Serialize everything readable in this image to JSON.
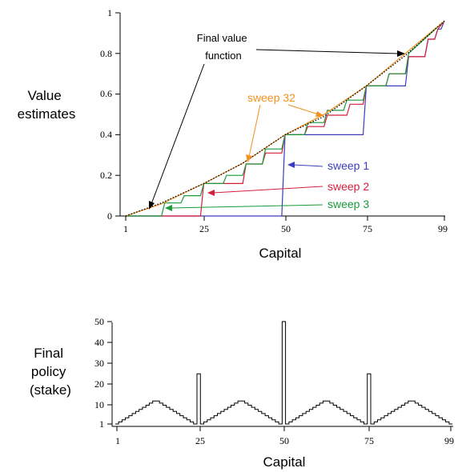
{
  "chart_data": [
    {
      "type": "line",
      "ylabel": [
        "Value",
        "estimates"
      ],
      "xlabel": "Capital",
      "xlim": [
        1,
        99
      ],
      "ylim": [
        0,
        1
      ],
      "xticks": [
        "1",
        "25",
        "50",
        "75",
        "99"
      ],
      "yticks": [
        "0",
        "0.2",
        "0.4",
        "0.6",
        "0.8",
        "1"
      ],
      "annotations": {
        "final": [
          "Final value",
          "function"
        ],
        "sweep32": "sweep 32",
        "sweep1": "sweep 1",
        "sweep2": "sweep 2",
        "sweep3": "sweep 3"
      },
      "series": [
        {
          "name": "sweep 1",
          "color": "#3a3dbb",
          "x": [
            1,
            49,
            50,
            74,
            75,
            87,
            88,
            93,
            94,
            96,
            97,
            98,
            99
          ],
          "y": [
            0,
            0,
            0.4,
            0.4,
            0.64,
            0.64,
            0.784,
            0.784,
            0.87,
            0.87,
            0.92,
            0.92,
            0.96
          ]
        },
        {
          "name": "sweep 2",
          "color": "#d41f3c",
          "x": [
            1,
            24,
            25,
            37,
            38,
            43,
            44,
            49,
            50,
            56,
            57,
            62,
            63,
            69,
            70,
            74,
            75,
            81,
            82,
            87,
            88,
            93,
            94,
            96,
            97,
            99
          ],
          "y": [
            0,
            0,
            0.16,
            0.16,
            0.256,
            0.256,
            0.31,
            0.31,
            0.4,
            0.4,
            0.44,
            0.44,
            0.496,
            0.496,
            0.55,
            0.55,
            0.64,
            0.64,
            0.7,
            0.7,
            0.784,
            0.784,
            0.87,
            0.87,
            0.92,
            0.96
          ]
        },
        {
          "name": "sweep 3",
          "color": "#1a9a38",
          "x": [
            1,
            12,
            13,
            18,
            19,
            24,
            25,
            31,
            32,
            37,
            38,
            43,
            44,
            49,
            50,
            56,
            57,
            62,
            63,
            68,
            69,
            74,
            75,
            81,
            82,
            87,
            88,
            99
          ],
          "y": [
            0,
            0,
            0.064,
            0.064,
            0.1,
            0.1,
            0.16,
            0.16,
            0.2,
            0.2,
            0.256,
            0.256,
            0.33,
            0.33,
            0.4,
            0.4,
            0.46,
            0.46,
            0.52,
            0.52,
            0.57,
            0.57,
            0.64,
            0.64,
            0.7,
            0.7,
            0.8,
            0.96
          ]
        },
        {
          "name": "sweep 32",
          "color": "#f2911e",
          "x": [
            1,
            12,
            25,
            37,
            50,
            62,
            75,
            87,
            99
          ],
          "y": [
            0,
            0.06,
            0.16,
            0.26,
            0.4,
            0.5,
            0.64,
            0.8,
            0.96
          ]
        },
        {
          "name": "Final value function",
          "color": "#000000",
          "x": [
            1,
            12,
            25,
            37,
            50,
            62,
            75,
            87,
            99
          ],
          "y": [
            0,
            0.064,
            0.16,
            0.26,
            0.4,
            0.49,
            0.64,
            0.79,
            0.96
          ]
        }
      ]
    },
    {
      "type": "step",
      "ylabel": [
        "Final",
        "policy",
        "(stake)"
      ],
      "xlabel": "Capital",
      "xlim": [
        1,
        99
      ],
      "ylim": [
        1,
        50
      ],
      "xticks": [
        "1",
        "25",
        "50",
        "75",
        "99"
      ],
      "yticks": [
        "1",
        "10",
        "20",
        "30",
        "40",
        "50"
      ],
      "series": [
        {
          "name": "policy",
          "color": "#000000",
          "x": [
            1,
            2,
            3,
            4,
            5,
            6,
            7,
            8,
            9,
            10,
            11,
            12,
            13,
            14,
            15,
            16,
            17,
            18,
            19,
            20,
            21,
            22,
            23,
            24,
            25,
            26,
            27,
            28,
            29,
            30,
            31,
            32,
            33,
            34,
            35,
            36,
            37,
            38,
            39,
            40,
            41,
            42,
            43,
            44,
            45,
            46,
            47,
            48,
            49,
            50,
            51,
            52,
            53,
            54,
            55,
            56,
            57,
            58,
            59,
            60,
            61,
            62,
            63,
            64,
            65,
            66,
            67,
            68,
            69,
            70,
            71,
            72,
            73,
            74,
            75,
            76,
            77,
            78,
            79,
            80,
            81,
            82,
            83,
            84,
            85,
            86,
            87,
            88,
            89,
            90,
            91,
            92,
            93,
            94,
            95,
            96,
            97,
            98,
            99
          ],
          "y": [
            1,
            2,
            3,
            4,
            5,
            6,
            7,
            8,
            9,
            10,
            11,
            12,
            12,
            11,
            10,
            9,
            8,
            7,
            6,
            5,
            4,
            3,
            2,
            1,
            25,
            1,
            2,
            3,
            4,
            5,
            6,
            7,
            8,
            9,
            10,
            11,
            12,
            12,
            11,
            10,
            9,
            8,
            7,
            6,
            5,
            4,
            3,
            2,
            1,
            50,
            1,
            2,
            3,
            4,
            5,
            6,
            7,
            8,
            9,
            10,
            11,
            12,
            12,
            11,
            10,
            9,
            8,
            7,
            6,
            5,
            4,
            3,
            2,
            1,
            25,
            1,
            2,
            3,
            4,
            5,
            6,
            7,
            8,
            9,
            10,
            11,
            12,
            12,
            11,
            10,
            9,
            8,
            7,
            6,
            5,
            4,
            3,
            2,
            1
          ]
        }
      ]
    }
  ]
}
